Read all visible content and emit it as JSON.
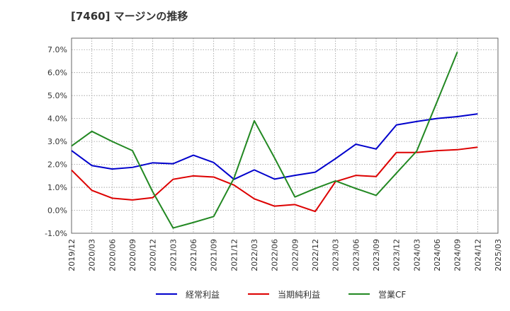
{
  "chart_data": {
    "type": "line",
    "title": "[7460]  マージンの推移",
    "xlabel": "",
    "ylabel": "",
    "x": [
      "2019/12",
      "2020/03",
      "2020/06",
      "2020/09",
      "2020/12",
      "2021/03",
      "2021/06",
      "2021/09",
      "2021/12",
      "2022/03",
      "2022/06",
      "2022/09",
      "2022/12",
      "2023/03",
      "2023/06",
      "2023/09",
      "2023/12",
      "2024/03",
      "2024/06",
      "2024/09",
      "2024/12",
      "2025/03"
    ],
    "ylim": [
      -1.0,
      7.5
    ],
    "yticks": [
      -1.0,
      0.0,
      1.0,
      2.0,
      3.0,
      4.0,
      5.0,
      6.0,
      7.0
    ],
    "ytick_labels": [
      "-1.0%",
      "0.0%",
      "1.0%",
      "2.0%",
      "3.0%",
      "4.0%",
      "5.0%",
      "6.0%",
      "7.0%"
    ],
    "grid": true,
    "legend_position": "bottom",
    "series": [
      {
        "name": "経常利益",
        "color": "#0000cc",
        "values": [
          2.6,
          1.95,
          1.8,
          1.87,
          2.07,
          2.03,
          2.4,
          2.08,
          1.35,
          1.76,
          1.36,
          1.52,
          1.66,
          2.25,
          2.88,
          2.67,
          3.72,
          3.87,
          4.0,
          4.08,
          4.2,
          null
        ]
      },
      {
        "name": "当期純利益",
        "color": "#dd0000",
        "values": [
          1.75,
          0.87,
          0.53,
          0.45,
          0.55,
          1.35,
          1.5,
          1.45,
          1.1,
          0.5,
          0.18,
          0.25,
          -0.05,
          1.25,
          1.52,
          1.47,
          2.52,
          2.52,
          2.6,
          2.64,
          2.75,
          null
        ]
      },
      {
        "name": "営業CF",
        "color": "#228822",
        "values": [
          2.8,
          3.44,
          3.0,
          2.6,
          0.8,
          -0.77,
          -0.53,
          -0.27,
          1.4,
          3.9,
          2.28,
          0.58,
          0.95,
          1.28,
          0.95,
          0.65,
          1.62,
          2.58,
          4.73,
          6.9,
          null,
          null
        ]
      }
    ]
  }
}
